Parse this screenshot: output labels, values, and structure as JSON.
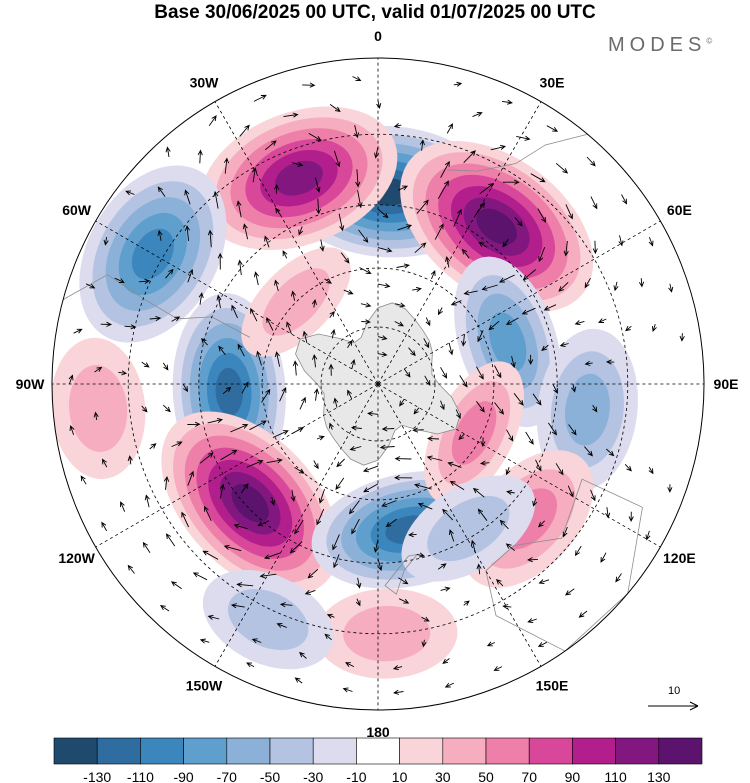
{
  "header": {
    "title": "Base 30/06/2025 00 UTC, valid 01/07/2025 00 UTC",
    "brand": "MODES",
    "brand_mark": "©"
  },
  "map": {
    "projection": "south-polar-stereographic",
    "longitude_labels": [
      {
        "text": "0",
        "lon": 0
      },
      {
        "text": "30E",
        "lon": 30
      },
      {
        "text": "60E",
        "lon": 60
      },
      {
        "text": "90E",
        "lon": 90
      },
      {
        "text": "120E",
        "lon": 120
      },
      {
        "text": "150E",
        "lon": 150
      },
      {
        "text": "180",
        "lon": 180
      },
      {
        "text": "150W",
        "lon": -150
      },
      {
        "text": "120W",
        "lon": -120
      },
      {
        "text": "90W",
        "lon": -90
      },
      {
        "text": "60W",
        "lon": -60
      },
      {
        "text": "30W",
        "lon": -30
      }
    ],
    "latitude_circles": [
      -30,
      -45,
      -60,
      -75
    ],
    "anomaly_centers": [
      {
        "lon": 3,
        "lat": -42,
        "value": -125
      },
      {
        "lon": -21,
        "lat": -36,
        "value": 115
      },
      {
        "lon": 37,
        "lat": -41,
        "value": 135
      },
      {
        "lon": -60,
        "lat": -28,
        "value": -95
      },
      {
        "lon": 72,
        "lat": -55,
        "value": -75
      },
      {
        "lon": 97,
        "lat": -38,
        "value": -55
      },
      {
        "lon": -93,
        "lat": -52,
        "value": -105
      },
      {
        "lon": -133,
        "lat": -46,
        "value": 135
      },
      {
        "lon": 168,
        "lat": -52,
        "value": -105
      },
      {
        "lon": 117,
        "lat": -62,
        "value": 45
      },
      {
        "lon": 132,
        "lat": -40,
        "value": 55
      },
      {
        "lon": 148,
        "lat": -47,
        "value": -35
      },
      {
        "lon": 178,
        "lat": -30,
        "value": 25
      },
      {
        "lon": -95,
        "lat": -24,
        "value": 25
      },
      {
        "lon": -155,
        "lat": -28,
        "value": -20
      },
      {
        "lon": -45,
        "lat": -60,
        "value": 20
      }
    ],
    "reference_vector": {
      "label": "10"
    }
  },
  "colorbar": {
    "colors": [
      "#1f4a6e",
      "#2f6c9f",
      "#3c86be",
      "#5f9fce",
      "#8cb1d8",
      "#b4c3e1",
      "#dcdcee",
      "#ffffff",
      "#f9d4d8",
      "#f5adbf",
      "#ee7fa9",
      "#d9479a",
      "#b21f8c",
      "#82187f",
      "#5c136d"
    ],
    "labels": [
      "-130",
      "-110",
      "-90",
      "-70",
      "-50",
      "-30",
      "-10",
      "10",
      "30",
      "50",
      "70",
      "90",
      "110",
      "130"
    ]
  }
}
